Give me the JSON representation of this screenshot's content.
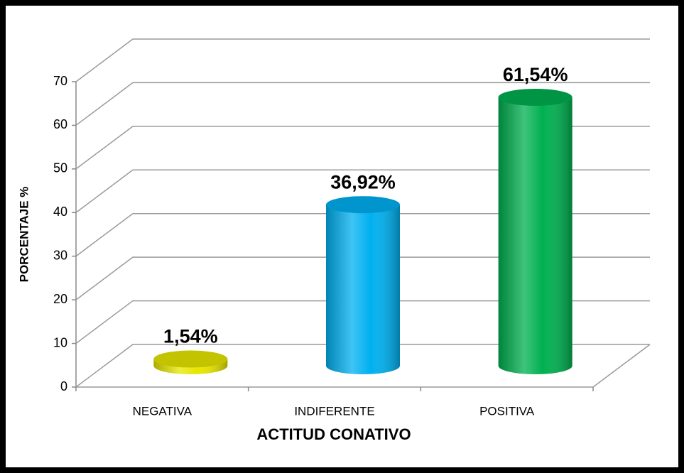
{
  "chart_data": {
    "type": "bar3d",
    "x_label": "ACTITUD CONATIVO",
    "y_label": "PORCENTAJE %",
    "categories": [
      "NEGATIVA",
      "INDIFERENTE",
      "POSITIVA"
    ],
    "values": [
      1.54,
      36.92,
      61.54
    ],
    "value_labels": [
      "1,54%",
      "36,92%",
      "61,54%"
    ],
    "colors": [
      "#e6e600",
      "#00b0f0",
      "#00b050"
    ],
    "ylim": [
      0,
      70
    ],
    "yticks": [
      0,
      10,
      20,
      30,
      40,
      50,
      60,
      70
    ],
    "grid": true
  }
}
